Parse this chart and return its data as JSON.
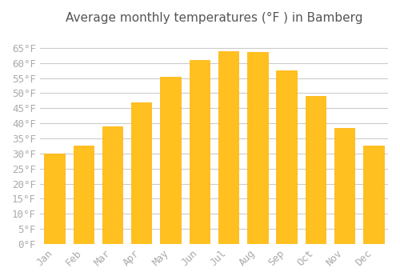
{
  "title": "Average monthly temperatures (°F ) in Bamberg",
  "months": [
    "Jan",
    "Feb",
    "Mar",
    "Apr",
    "May",
    "Jun",
    "Jul",
    "Aug",
    "Sep",
    "Oct",
    "Nov",
    "Dec"
  ],
  "values": [
    30.0,
    32.5,
    39.0,
    47.0,
    55.5,
    61.0,
    64.0,
    63.5,
    57.5,
    49.0,
    38.5,
    32.5
  ],
  "bar_color_face": "#FFC020",
  "bar_color_edge": "#FFB000",
  "background_color": "#FFFFFF",
  "grid_color": "#CCCCCC",
  "tick_label_color": "#AAAAAA",
  "title_color": "#555555",
  "ylim": [
    0,
    70
  ],
  "yticks": [
    0,
    5,
    10,
    15,
    20,
    25,
    30,
    35,
    40,
    45,
    50,
    55,
    60,
    65
  ],
  "ylabel_format": "°F",
  "title_fontsize": 11,
  "tick_fontsize": 9
}
